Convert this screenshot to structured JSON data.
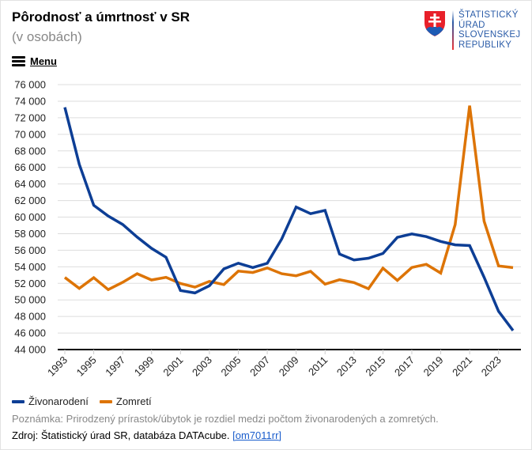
{
  "header": {
    "title": "Pôrodnosť a úmrtnosť v SR",
    "subtitle": "(v osobách)",
    "menu_label": "Menu",
    "menu_icon": "hamburger-icon"
  },
  "logo": {
    "lines": [
      "ŠTATISTICKÝ",
      "ÚRAD",
      "SLOVENSKEJ",
      "REPUBLIKY"
    ],
    "emblem": "slovak-coat-of-arms"
  },
  "colors": {
    "births": "#0d3e95",
    "deaths": "#dd7406",
    "grid": "#dddddd",
    "axis": "#000000"
  },
  "footer": {
    "note": "Poznámka: Prirodzený prírastok/úbytok je rozdiel medzi počtom živonarodených a zomretých.",
    "source_prefix": "Zdroj: Štatistický úrad SR, databáza DATAcube. ",
    "source_link": "[om7011rr]"
  },
  "chart_data": {
    "type": "line",
    "title": "Pôrodnosť a úmrtnosť v SR",
    "subtitle": "(v osobách)",
    "xlabel": "",
    "ylabel": "",
    "ylim": [
      44000,
      76000
    ],
    "grid": true,
    "legend_position": "bottom-left",
    "yticks": [
      44000,
      46000,
      48000,
      50000,
      52000,
      54000,
      56000,
      58000,
      60000,
      62000,
      64000,
      66000,
      68000,
      70000,
      72000,
      74000,
      76000
    ],
    "ytick_labels": [
      "44 000",
      "46 000",
      "48 000",
      "50 000",
      "52 000",
      "54 000",
      "56 000",
      "58 000",
      "60 000",
      "62 000",
      "64 000",
      "66 000",
      "68 000",
      "70 000",
      "72 000",
      "74 000",
      "76 000"
    ],
    "xtick_labels": [
      "1993",
      "1995",
      "1997",
      "1999",
      "2001",
      "2003",
      "2005",
      "2007",
      "2009",
      "2011",
      "2013",
      "2015",
      "2017",
      "2019",
      "2021",
      "2023"
    ],
    "x": [
      1993,
      1994,
      1995,
      1996,
      1997,
      1998,
      1999,
      2000,
      2001,
      2002,
      2003,
      2004,
      2005,
      2006,
      2007,
      2008,
      2009,
      2010,
      2011,
      2012,
      2013,
      2014,
      2015,
      2016,
      2017,
      2018,
      2019,
      2020,
      2021,
      2022,
      2023,
      2024
    ],
    "series": [
      {
        "name": "Živonarodení",
        "color": "#0d3e95",
        "values": [
          73256,
          66370,
          61427,
          60123,
          59111,
          57582,
          56223,
          55151,
          51136,
          50841,
          51713,
          53747,
          54430,
          53904,
          54424,
          57360,
          61217,
          60410,
          60813,
          55535,
          54823,
          55033,
          55602,
          57557,
          57969,
          57639,
          57054,
          56650,
          56565,
          52733,
          48620,
          46300
        ]
      },
      {
        "name": "Zomretí",
        "color": "#dd7406",
        "values": [
          52707,
          51386,
          52686,
          51236,
          52124,
          53156,
          52402,
          52724,
          51980,
          51532,
          52230,
          51852,
          53475,
          53301,
          53856,
          53164,
          52913,
          53445,
          51903,
          52437,
          52089,
          51346,
          53826,
          52351,
          53914,
          54293,
          53234,
          59089,
          73461,
          59500,
          54100,
          53900
        ]
      }
    ]
  }
}
